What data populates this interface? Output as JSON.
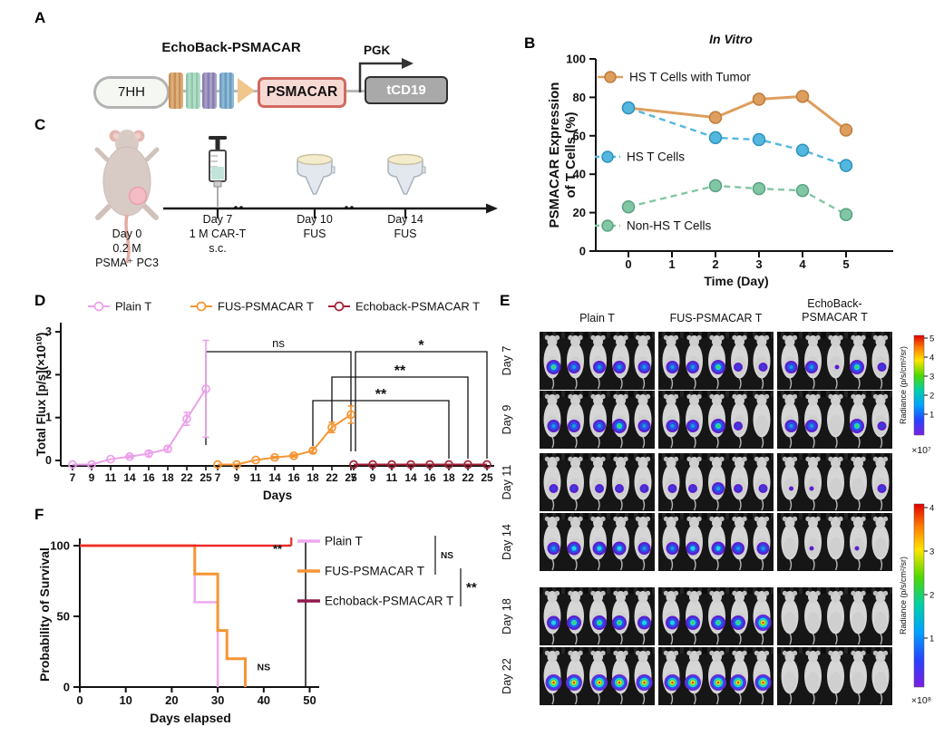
{
  "panels": {
    "A": {
      "label": "A",
      "title": "EchoBack-PSMACAR",
      "cassette": {
        "left_element": "7HH",
        "car_box": "PSMACAR",
        "promoter": "PGK",
        "right_box": "tCD19",
        "domain_colors": [
          "#D9A96C",
          "#A7D6C0",
          "#9C93BF",
          "#7FAECD"
        ]
      }
    },
    "B": {
      "label": "B"
    },
    "C": {
      "label": "C",
      "events": [
        {
          "icon": "mouse",
          "lines": [
            "Day 0",
            "0.2 M",
            "PSMA⁺ PC3"
          ]
        },
        {
          "icon": "syringe",
          "lines": [
            "Day 7",
            "1 M CAR-T",
            "s.c."
          ]
        },
        {
          "icon": "fus-transducer",
          "lines": [
            "Day 10",
            "FUS"
          ]
        },
        {
          "icon": "fus-transducer",
          "lines": [
            "Day 14",
            "FUS"
          ]
        }
      ]
    },
    "D": {
      "label": "D"
    },
    "E": {
      "label": "E",
      "columns": [
        [
          "Plain T"
        ],
        [
          "FUS-PSMACAR T"
        ],
        [
          "EchoBack-",
          "PSMACAR T"
        ]
      ],
      "spot_levels": {
        "n": "none",
        "t": "trace",
        "p": "purple",
        "b": "blue",
        "c": "cyan-core",
        "g": "green-core",
        "r": "rainbow-core"
      },
      "rows": [
        {
          "label": "Day 7",
          "spots": [
            [
              "g",
              "b",
              "b",
              "b",
              "b"
            ],
            [
              "b",
              "b",
              "g",
              "p",
              "p"
            ],
            [
              "b",
              "b",
              "t",
              "g",
              "p"
            ]
          ]
        },
        {
          "label": "Day 9",
          "spots": [
            [
              "b",
              "b",
              "b",
              "g",
              "b"
            ],
            [
              "b",
              "b",
              "g",
              "p",
              "n"
            ],
            [
              "b",
              "b",
              "n",
              "g",
              "p"
            ]
          ]
        },
        {
          "label": "Day 11",
          "spots": [
            [
              "p",
              "p",
              "p",
              "p",
              "p"
            ],
            [
              "p",
              "p",
              "b",
              "p",
              "p"
            ],
            [
              "t",
              "t",
              "n",
              "n",
              "p"
            ]
          ]
        },
        {
          "label": "Day 14",
          "spots": [
            [
              "b",
              "c",
              "c",
              "c",
              "b"
            ],
            [
              "b",
              "c",
              "c",
              "b",
              "b"
            ],
            [
              "n",
              "t",
              "n",
              "t",
              "n"
            ]
          ]
        },
        {
          "label": "Day 18",
          "spots": [
            [
              "c",
              "g",
              "g",
              "g",
              "c"
            ],
            [
              "c",
              "g",
              "g",
              "g",
              "r"
            ],
            [
              "n",
              "n",
              "n",
              "n",
              "n"
            ]
          ]
        },
        {
          "label": "Day 22",
          "spots": [
            [
              "r",
              "r",
              "r",
              "r",
              "r"
            ],
            [
              "r",
              "r",
              "r",
              "r",
              "r"
            ],
            [
              "n",
              "n",
              "n",
              "n",
              "n"
            ]
          ]
        }
      ],
      "colorbars": [
        {
          "label": "Radiance (p/s/cm²/sr)",
          "ticks": [
            5,
            4,
            3,
            2,
            1
          ],
          "multiplier": "×10⁷"
        },
        {
          "label": "Radiance (p/s/cm²/sr)",
          "ticks": [
            4,
            3,
            2,
            1
          ],
          "multiplier": "×10⁸"
        }
      ]
    },
    "F": {
      "label": "F"
    }
  },
  "chart_data": [
    {
      "panel": "B",
      "type": "line",
      "title": "In Vitro",
      "xlabel": "Time (Day)",
      "ylabel": "PSMACAR Expression\nof T Cells (%)",
      "xticks": [
        0,
        1,
        2,
        3,
        4,
        5
      ],
      "yticks": [
        0,
        20,
        40,
        60,
        80,
        100
      ],
      "xlim": [
        0,
        5
      ],
      "ylim": [
        0,
        100
      ],
      "grid": false,
      "legend_position": "inside",
      "series": [
        {
          "name": "HS T Cells with Tumor",
          "color": "#DE9E5E",
          "edge": "#BF7C3C",
          "line": "solid",
          "x": [
            0,
            2,
            3,
            4,
            5
          ],
          "y": [
            74.5,
            69.5,
            79,
            80.5,
            63
          ]
        },
        {
          "name": "HS T Cells",
          "color": "#53B7DE",
          "edge": "#2D93BD",
          "line": "dashed",
          "x": [
            0,
            2,
            3,
            4,
            5
          ],
          "y": [
            74.5,
            59,
            58,
            52.5,
            44.5
          ]
        },
        {
          "name": "Non-HS T Cells",
          "color": "#82C7A5",
          "edge": "#57A182",
          "line": "dashed",
          "x": [
            0,
            2,
            3,
            4,
            5
          ],
          "y": [
            23,
            34,
            32.5,
            31.5,
            19
          ]
        }
      ]
    },
    {
      "panel": "D",
      "type": "line",
      "title": "",
      "xlabel": "Days",
      "ylabel": "Total Flux [p/s](×10¹⁰)",
      "yticks": [
        0,
        1,
        2,
        3
      ],
      "ylim": [
        0,
        3
      ],
      "group_days": [
        7,
        9,
        11,
        14,
        16,
        18,
        22,
        25
      ],
      "series": [
        {
          "name": "Plain T",
          "color": "#EBA0EB",
          "values": [
            0,
            0,
            0.03,
            0.09,
            0.16,
            0.27,
            0.97,
            1.67
          ],
          "errors": [
            0,
            0,
            0,
            0.03,
            0.06,
            0.07,
            0.15,
            1.13
          ]
        },
        {
          "name": "FUS-PSMACAR T",
          "color": "#F79433",
          "values": [
            0,
            0,
            0.01,
            0.07,
            0.11,
            0.23,
            0.77,
            1.07
          ],
          "errors": [
            0,
            0,
            0,
            0.02,
            0.03,
            0.05,
            0.12,
            0.2
          ]
        },
        {
          "name": "Echoback-PSMACAR T",
          "color": "#A32036",
          "values": [
            0,
            0,
            0,
            0,
            0,
            0,
            0,
            0
          ],
          "errors": [
            0,
            0,
            0,
            0,
            0,
            0,
            0,
            0
          ]
        }
      ],
      "significance": [
        {
          "label": "ns",
          "from": {
            "series": 0,
            "day": 25
          },
          "to": {
            "series": 1,
            "day": 25
          }
        },
        {
          "label": "*",
          "from": {
            "series": 1,
            "day": 25
          },
          "to": {
            "series": 2,
            "day": 25
          }
        },
        {
          "label": "**",
          "from": {
            "series": 1,
            "day": 22
          },
          "to": {
            "series": 2,
            "day": 22
          }
        },
        {
          "label": "**",
          "from": {
            "series": 1,
            "day": 18
          },
          "to": {
            "series": 2,
            "day": 18
          }
        }
      ]
    },
    {
      "panel": "F",
      "type": "step",
      "title": "",
      "xlabel": "Days elapsed",
      "ylabel": "Probability of Survival",
      "xticks": [
        0,
        10,
        20,
        30,
        40,
        50
      ],
      "yticks": [
        0,
        50,
        100
      ],
      "series": [
        {
          "name": "Plain T",
          "color": "#EFA9EF",
          "points": [
            [
              0,
              100
            ],
            [
              25,
              100
            ],
            [
              25,
              60
            ],
            [
              30,
              60
            ],
            [
              30,
              0
            ]
          ]
        },
        {
          "name": "FUS-PSMACAR T",
          "color": "#F79433",
          "points": [
            [
              0,
              100
            ],
            [
              25,
              100
            ],
            [
              25,
              80
            ],
            [
              30,
              80
            ],
            [
              30,
              40
            ],
            [
              32,
              40
            ],
            [
              32,
              20
            ],
            [
              36,
              20
            ],
            [
              36,
              0
            ]
          ]
        },
        {
          "name": "Echoback-PSMACAR T",
          "color": "#EE2A2A",
          "legend_color": "#8E1A4A",
          "points": [
            [
              0,
              100
            ],
            [
              46,
              100
            ]
          ],
          "censor_x": 46
        }
      ],
      "annotations": [
        {
          "text": "**",
          "x": 43,
          "y": 95
        },
        {
          "text": "NS",
          "x": 40,
          "y": 12
        }
      ],
      "legend_significance": [
        {
          "label": "NS",
          "between": [
            "Plain T",
            "FUS-PSMACAR T"
          ]
        },
        {
          "label": "**",
          "between": [
            "FUS-PSMACAR T",
            "Echoback-PSMACAR T"
          ]
        }
      ]
    }
  ]
}
